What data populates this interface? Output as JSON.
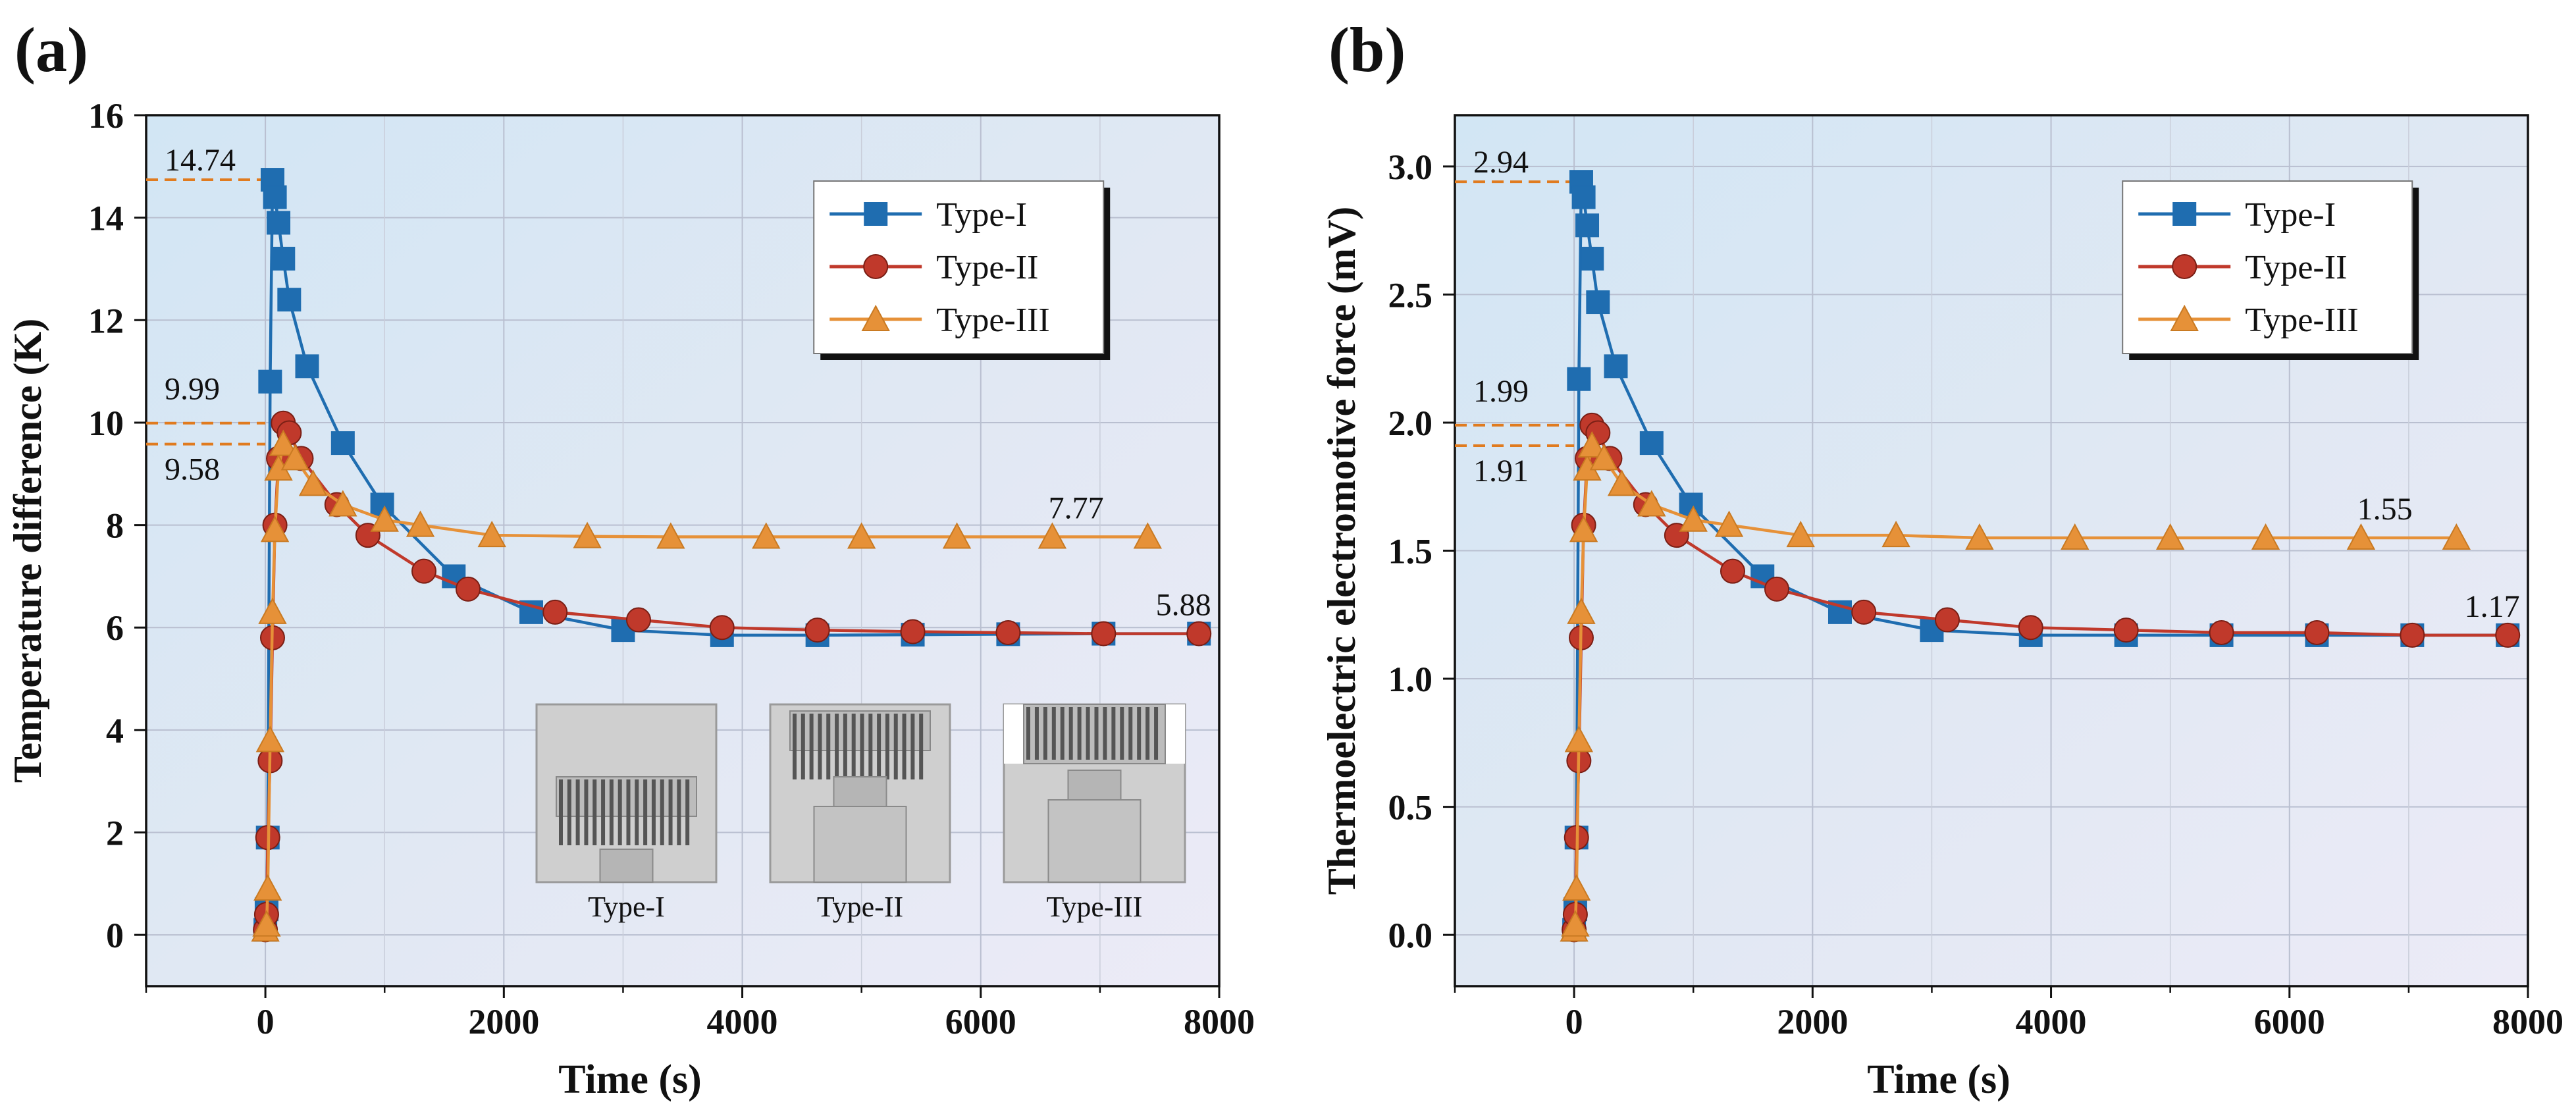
{
  "chart_data": [
    {
      "panel_label": "(a)",
      "type": "line",
      "xlabel": "Time (s)",
      "ylabel": "Temperature difference (K)",
      "xlim": [
        -1000,
        8000
      ],
      "ylim": [
        -1,
        16
      ],
      "xticks": [
        0,
        2000,
        4000,
        6000,
        8000
      ],
      "yticks": [
        0,
        2,
        4,
        6,
        8,
        10,
        12,
        14,
        16
      ],
      "grid": true,
      "legend_position": "top-right",
      "series": [
        {
          "name": "Type-I",
          "color": "#1f6db0",
          "marker": "square",
          "x": [
            0,
            10,
            20,
            40,
            60,
            80,
            110,
            150,
            200,
            350,
            650,
            980,
            1580,
            2230,
            3000,
            3830,
            4630,
            5430,
            6230,
            7030,
            7830
          ],
          "y": [
            0.1,
            0.5,
            1.9,
            10.8,
            14.74,
            14.4,
            13.9,
            13.2,
            12.4,
            11.1,
            9.6,
            8.4,
            7.0,
            6.3,
            5.95,
            5.85,
            5.85,
            5.86,
            5.87,
            5.88,
            5.88
          ]
        },
        {
          "name": "Type-II",
          "color": "#c0392b",
          "marker": "circle",
          "x": [
            0,
            10,
            20,
            40,
            60,
            80,
            110,
            150,
            200,
            300,
            600,
            860,
            1330,
            1700,
            2430,
            3130,
            3830,
            4630,
            5430,
            6230,
            7030,
            7830
          ],
          "y": [
            0.1,
            0.4,
            1.9,
            3.4,
            5.8,
            8.0,
            9.3,
            9.99,
            9.8,
            9.3,
            8.4,
            7.8,
            7.1,
            6.75,
            6.3,
            6.15,
            6.0,
            5.95,
            5.92,
            5.9,
            5.88,
            5.88
          ]
        },
        {
          "name": "Type-III",
          "color": "#e69138",
          "marker": "triangle",
          "x": [
            0,
            10,
            20,
            40,
            60,
            80,
            110,
            150,
            250,
            400,
            650,
            1000,
            1300,
            1900,
            2700,
            3400,
            4200,
            5000,
            5800,
            6600,
            7400
          ],
          "y": [
            0.1,
            0.2,
            0.9,
            3.8,
            6.3,
            7.9,
            9.1,
            9.58,
            9.3,
            8.8,
            8.4,
            8.1,
            8.0,
            7.8,
            7.78,
            7.77,
            7.77,
            7.77,
            7.77,
            7.77,
            7.77
          ]
        }
      ],
      "annotations": [
        {
          "text": "14.74",
          "y": 14.74,
          "dashed": true
        },
        {
          "text": "9.99",
          "y": 9.99,
          "dashed": true
        },
        {
          "text": "9.58",
          "y": 9.58,
          "dashed": true
        },
        {
          "text": "7.77",
          "x": 6800,
          "y": 7.77
        },
        {
          "text": "5.88",
          "x": 7700,
          "y": 5.88
        }
      ],
      "inset_labels": [
        "Type-I",
        "Type-II",
        "Type-III"
      ]
    },
    {
      "panel_label": "(b)",
      "type": "line",
      "xlabel": "Time (s)",
      "ylabel": "Thermoelectric electromotive force (mV)",
      "xlim": [
        -1000,
        8000
      ],
      "ylim": [
        -0.2,
        3.2
      ],
      "xticks": [
        0,
        2000,
        4000,
        6000,
        8000
      ],
      "yticks": [
        0.0,
        0.5,
        1.0,
        1.5,
        2.0,
        2.5,
        3.0
      ],
      "ytick_labels": [
        "0.0",
        "0.5",
        "1.0",
        "1.5",
        "2.0",
        "2.5",
        "3.0"
      ],
      "grid": true,
      "legend_position": "top-right",
      "series": [
        {
          "name": "Type-I",
          "color": "#1f6db0",
          "marker": "square",
          "x": [
            0,
            10,
            20,
            40,
            60,
            80,
            110,
            150,
            200,
            350,
            650,
            980,
            1580,
            2230,
            3000,
            3830,
            4630,
            5430,
            6230,
            7030,
            7830
          ],
          "y": [
            0.02,
            0.1,
            0.38,
            2.17,
            2.94,
            2.88,
            2.77,
            2.64,
            2.47,
            2.22,
            1.92,
            1.68,
            1.4,
            1.26,
            1.19,
            1.17,
            1.17,
            1.17,
            1.17,
            1.17,
            1.17
          ]
        },
        {
          "name": "Type-II",
          "color": "#c0392b",
          "marker": "circle",
          "x": [
            0,
            10,
            20,
            40,
            60,
            80,
            110,
            150,
            200,
            300,
            600,
            860,
            1330,
            1700,
            2430,
            3130,
            3830,
            4630,
            5430,
            6230,
            7030,
            7830
          ],
          "y": [
            0.02,
            0.08,
            0.38,
            0.68,
            1.16,
            1.6,
            1.86,
            1.99,
            1.96,
            1.86,
            1.68,
            1.56,
            1.42,
            1.35,
            1.26,
            1.23,
            1.2,
            1.19,
            1.18,
            1.18,
            1.17,
            1.17
          ]
        },
        {
          "name": "Type-III",
          "color": "#e69138",
          "marker": "triangle",
          "x": [
            0,
            10,
            20,
            40,
            60,
            80,
            110,
            150,
            250,
            400,
            650,
            1000,
            1300,
            1900,
            2700,
            3400,
            4200,
            5000,
            5800,
            6600,
            7400
          ],
          "y": [
            0.02,
            0.04,
            0.18,
            0.76,
            1.26,
            1.58,
            1.82,
            1.91,
            1.86,
            1.76,
            1.68,
            1.62,
            1.6,
            1.56,
            1.56,
            1.55,
            1.55,
            1.55,
            1.55,
            1.55,
            1.55
          ]
        }
      ],
      "annotations": [
        {
          "text": "2.94",
          "y": 2.94,
          "dashed": true
        },
        {
          "text": "1.99",
          "y": 1.99,
          "dashed": true
        },
        {
          "text": "1.91",
          "y": 1.91,
          "dashed": true
        },
        {
          "text": "1.55",
          "x": 6800,
          "y": 1.55
        },
        {
          "text": "1.17",
          "x": 7700,
          "y": 1.17
        }
      ]
    }
  ]
}
